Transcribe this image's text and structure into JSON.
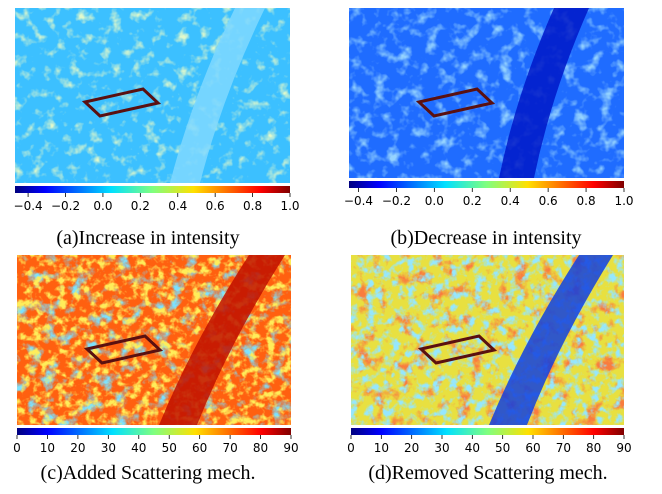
{
  "panels": [
    {
      "caption": "(a)Increase in intensity",
      "colorbar": {
        "lim": [
          -0.47,
          1.0
        ],
        "ticks": [
          {
            "value": -0.4,
            "label": "−0.4"
          },
          {
            "value": -0.2,
            "label": "−0.2"
          },
          {
            "value": 0,
            "label": "0.0"
          },
          0.2,
          0.4,
          0.6,
          0.8,
          {
            "value": 1,
            "label": "1.0"
          }
        ]
      }
    },
    {
      "caption": "(b)Decrease in intensity",
      "colorbar": {
        "lim": [
          -0.45,
          1.0
        ],
        "ticks": [
          {
            "value": -0.4,
            "label": "−0.4"
          },
          {
            "value": -0.2,
            "label": "−0.2"
          },
          {
            "value": 0,
            "label": "0.0"
          },
          0.2,
          0.4,
          0.6,
          0.8,
          {
            "value": 1,
            "label": "1.0"
          }
        ]
      }
    },
    {
      "caption": "(c)Added Scattering mech.",
      "colorbar": {
        "lim": [
          0,
          90
        ],
        "ticks": [
          0,
          10,
          20,
          30,
          40,
          50,
          60,
          70,
          80,
          90
        ]
      }
    },
    {
      "caption": "(d)Removed Scattering mech.",
      "colorbar": {
        "lim": [
          0,
          90
        ],
        "ticks": [
          0,
          10,
          20,
          30,
          40,
          50,
          60,
          70,
          80,
          90
        ]
      }
    }
  ]
}
